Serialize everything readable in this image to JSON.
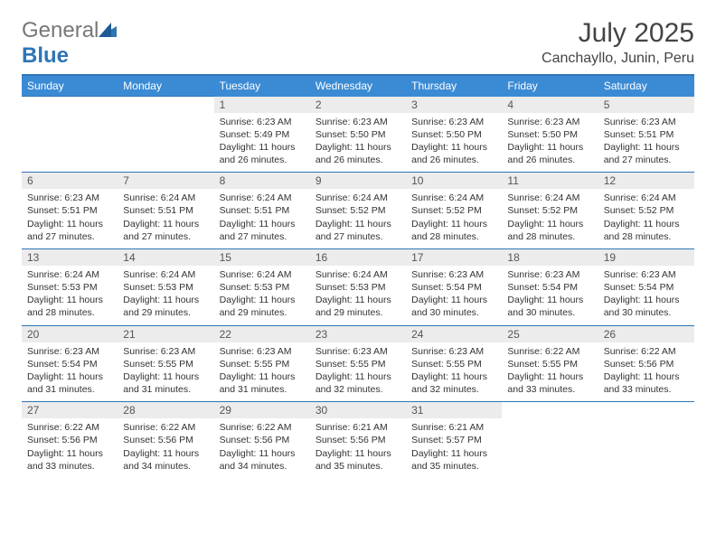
{
  "logo": {
    "textGray": "General",
    "textBlue": "Blue"
  },
  "title": "July 2025",
  "location": "Canchayllo, Junin, Peru",
  "colors": {
    "headerBg": "#3b8bd4",
    "headerText": "#ffffff",
    "border": "#2e75b6",
    "dayBg": "#ececec",
    "text": "#333333"
  },
  "dayHeaders": [
    "Sunday",
    "Monday",
    "Tuesday",
    "Wednesday",
    "Thursday",
    "Friday",
    "Saturday"
  ],
  "weeks": [
    {
      "nums": [
        "",
        "",
        "1",
        "2",
        "3",
        "4",
        "5"
      ],
      "cells": [
        null,
        null,
        {
          "sunrise": "Sunrise: 6:23 AM",
          "sunset": "Sunset: 5:49 PM",
          "d1": "Daylight: 11 hours",
          "d2": "and 26 minutes."
        },
        {
          "sunrise": "Sunrise: 6:23 AM",
          "sunset": "Sunset: 5:50 PM",
          "d1": "Daylight: 11 hours",
          "d2": "and 26 minutes."
        },
        {
          "sunrise": "Sunrise: 6:23 AM",
          "sunset": "Sunset: 5:50 PM",
          "d1": "Daylight: 11 hours",
          "d2": "and 26 minutes."
        },
        {
          "sunrise": "Sunrise: 6:23 AM",
          "sunset": "Sunset: 5:50 PM",
          "d1": "Daylight: 11 hours",
          "d2": "and 26 minutes."
        },
        {
          "sunrise": "Sunrise: 6:23 AM",
          "sunset": "Sunset: 5:51 PM",
          "d1": "Daylight: 11 hours",
          "d2": "and 27 minutes."
        }
      ]
    },
    {
      "nums": [
        "6",
        "7",
        "8",
        "9",
        "10",
        "11",
        "12"
      ],
      "cells": [
        {
          "sunrise": "Sunrise: 6:23 AM",
          "sunset": "Sunset: 5:51 PM",
          "d1": "Daylight: 11 hours",
          "d2": "and 27 minutes."
        },
        {
          "sunrise": "Sunrise: 6:24 AM",
          "sunset": "Sunset: 5:51 PM",
          "d1": "Daylight: 11 hours",
          "d2": "and 27 minutes."
        },
        {
          "sunrise": "Sunrise: 6:24 AM",
          "sunset": "Sunset: 5:51 PM",
          "d1": "Daylight: 11 hours",
          "d2": "and 27 minutes."
        },
        {
          "sunrise": "Sunrise: 6:24 AM",
          "sunset": "Sunset: 5:52 PM",
          "d1": "Daylight: 11 hours",
          "d2": "and 27 minutes."
        },
        {
          "sunrise": "Sunrise: 6:24 AM",
          "sunset": "Sunset: 5:52 PM",
          "d1": "Daylight: 11 hours",
          "d2": "and 28 minutes."
        },
        {
          "sunrise": "Sunrise: 6:24 AM",
          "sunset": "Sunset: 5:52 PM",
          "d1": "Daylight: 11 hours",
          "d2": "and 28 minutes."
        },
        {
          "sunrise": "Sunrise: 6:24 AM",
          "sunset": "Sunset: 5:52 PM",
          "d1": "Daylight: 11 hours",
          "d2": "and 28 minutes."
        }
      ]
    },
    {
      "nums": [
        "13",
        "14",
        "15",
        "16",
        "17",
        "18",
        "19"
      ],
      "cells": [
        {
          "sunrise": "Sunrise: 6:24 AM",
          "sunset": "Sunset: 5:53 PM",
          "d1": "Daylight: 11 hours",
          "d2": "and 28 minutes."
        },
        {
          "sunrise": "Sunrise: 6:24 AM",
          "sunset": "Sunset: 5:53 PM",
          "d1": "Daylight: 11 hours",
          "d2": "and 29 minutes."
        },
        {
          "sunrise": "Sunrise: 6:24 AM",
          "sunset": "Sunset: 5:53 PM",
          "d1": "Daylight: 11 hours",
          "d2": "and 29 minutes."
        },
        {
          "sunrise": "Sunrise: 6:24 AM",
          "sunset": "Sunset: 5:53 PM",
          "d1": "Daylight: 11 hours",
          "d2": "and 29 minutes."
        },
        {
          "sunrise": "Sunrise: 6:23 AM",
          "sunset": "Sunset: 5:54 PM",
          "d1": "Daylight: 11 hours",
          "d2": "and 30 minutes."
        },
        {
          "sunrise": "Sunrise: 6:23 AM",
          "sunset": "Sunset: 5:54 PM",
          "d1": "Daylight: 11 hours",
          "d2": "and 30 minutes."
        },
        {
          "sunrise": "Sunrise: 6:23 AM",
          "sunset": "Sunset: 5:54 PM",
          "d1": "Daylight: 11 hours",
          "d2": "and 30 minutes."
        }
      ]
    },
    {
      "nums": [
        "20",
        "21",
        "22",
        "23",
        "24",
        "25",
        "26"
      ],
      "cells": [
        {
          "sunrise": "Sunrise: 6:23 AM",
          "sunset": "Sunset: 5:54 PM",
          "d1": "Daylight: 11 hours",
          "d2": "and 31 minutes."
        },
        {
          "sunrise": "Sunrise: 6:23 AM",
          "sunset": "Sunset: 5:55 PM",
          "d1": "Daylight: 11 hours",
          "d2": "and 31 minutes."
        },
        {
          "sunrise": "Sunrise: 6:23 AM",
          "sunset": "Sunset: 5:55 PM",
          "d1": "Daylight: 11 hours",
          "d2": "and 31 minutes."
        },
        {
          "sunrise": "Sunrise: 6:23 AM",
          "sunset": "Sunset: 5:55 PM",
          "d1": "Daylight: 11 hours",
          "d2": "and 32 minutes."
        },
        {
          "sunrise": "Sunrise: 6:23 AM",
          "sunset": "Sunset: 5:55 PM",
          "d1": "Daylight: 11 hours",
          "d2": "and 32 minutes."
        },
        {
          "sunrise": "Sunrise: 6:22 AM",
          "sunset": "Sunset: 5:55 PM",
          "d1": "Daylight: 11 hours",
          "d2": "and 33 minutes."
        },
        {
          "sunrise": "Sunrise: 6:22 AM",
          "sunset": "Sunset: 5:56 PM",
          "d1": "Daylight: 11 hours",
          "d2": "and 33 minutes."
        }
      ]
    },
    {
      "nums": [
        "27",
        "28",
        "29",
        "30",
        "31",
        "",
        ""
      ],
      "cells": [
        {
          "sunrise": "Sunrise: 6:22 AM",
          "sunset": "Sunset: 5:56 PM",
          "d1": "Daylight: 11 hours",
          "d2": "and 33 minutes."
        },
        {
          "sunrise": "Sunrise: 6:22 AM",
          "sunset": "Sunset: 5:56 PM",
          "d1": "Daylight: 11 hours",
          "d2": "and 34 minutes."
        },
        {
          "sunrise": "Sunrise: 6:22 AM",
          "sunset": "Sunset: 5:56 PM",
          "d1": "Daylight: 11 hours",
          "d2": "and 34 minutes."
        },
        {
          "sunrise": "Sunrise: 6:21 AM",
          "sunset": "Sunset: 5:56 PM",
          "d1": "Daylight: 11 hours",
          "d2": "and 35 minutes."
        },
        {
          "sunrise": "Sunrise: 6:21 AM",
          "sunset": "Sunset: 5:57 PM",
          "d1": "Daylight: 11 hours",
          "d2": "and 35 minutes."
        },
        null,
        null
      ]
    }
  ]
}
